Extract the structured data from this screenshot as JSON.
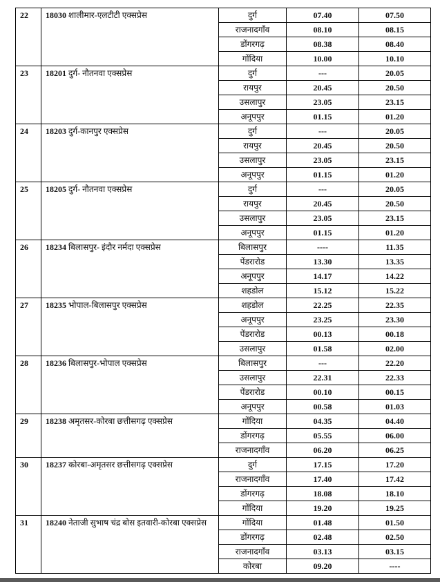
{
  "trains": [
    {
      "sn": "22",
      "number": "18030",
      "name": "शालीमार-एलटीटी एक्सप्रेस",
      "stops": [
        [
          "दुर्ग",
          "07.40",
          "07.50"
        ],
        [
          "राजनादगाँव",
          "08.10",
          "08.15"
        ],
        [
          "डोंगरगढ़",
          "08.38",
          "08.40"
        ],
        [
          "गोंदिया",
          "10.00",
          "10.10"
        ]
      ]
    },
    {
      "sn": "23",
      "number": "18201",
      "name": "दुर्ग- नौतनवा एक्सप्रेस",
      "stops": [
        [
          "दुर्ग",
          "---",
          "20.05"
        ],
        [
          "रायपुर",
          "20.45",
          "20.50"
        ],
        [
          "उसलापुर",
          "23.05",
          "23.15"
        ],
        [
          "अनूपपुर",
          "01.15",
          "01.20"
        ]
      ]
    },
    {
      "sn": "24",
      "number": "18203",
      "name": "दुर्ग-कानपुर एक्सप्रेस",
      "stops": [
        [
          "दुर्ग",
          "---",
          "20.05"
        ],
        [
          "रायपुर",
          "20.45",
          "20.50"
        ],
        [
          "उसलापुर",
          "23.05",
          "23.15"
        ],
        [
          "अनूपपुर",
          "01.15",
          "01.20"
        ]
      ]
    },
    {
      "sn": "25",
      "number": "18205",
      "name": "दुर्ग- नौतनवा एक्सप्रेस",
      "stops": [
        [
          "दुर्ग",
          "---",
          "20.05"
        ],
        [
          "रायपुर",
          "20.45",
          "20.50"
        ],
        [
          "उसलापुर",
          "23.05",
          "23.15"
        ],
        [
          "अनूपपुर",
          "01.15",
          "01.20"
        ]
      ]
    },
    {
      "sn": "26",
      "number": "18234",
      "name": "बिलासपुर- इंदौर नर्मदा एक्सप्रेस",
      "stops": [
        [
          "बिलासपुर",
          "----",
          "11.35"
        ],
        [
          "पेंडरारोड",
          "13.30",
          "13.35"
        ],
        [
          "अनूपपुर",
          "14.17",
          "14.22"
        ],
        [
          "शहडोल",
          "15.12",
          "15.22"
        ]
      ]
    },
    {
      "sn": "27",
      "number": "18235",
      "name": "भोपाल-बिलासपुर एक्सप्रेस",
      "stops": [
        [
          "शहडोल",
          "22.25",
          "22.35"
        ],
        [
          "अनूपपुर",
          "23.25",
          "23.30"
        ],
        [
          "पेंडरारोड",
          "00.13",
          "00.18"
        ],
        [
          "उसलापुर",
          "01.58",
          "02.00"
        ]
      ]
    },
    {
      "sn": "28",
      "number": "18236",
      "name": "बिलासपुर-भोपाल एक्सप्रेस",
      "stops": [
        [
          "बिलासपुर",
          "---",
          "22.20"
        ],
        [
          "उसलापुर",
          "22.31",
          "22.33"
        ],
        [
          "पेंडरारोड",
          "00.10",
          "00.15"
        ],
        [
          "अनूपपुर",
          "00.58",
          "01.03"
        ]
      ]
    },
    {
      "sn": "29",
      "number": "18238",
      "name": "अमृतसर-कोरबा छत्तीसगढ़ एक्सप्रेस",
      "stops": [
        [
          "गोंदिया",
          "04.35",
          "04.40"
        ],
        [
          "डोंगरगढ़",
          "05.55",
          "06.00"
        ],
        [
          "राजनादगाँव",
          "06.20",
          "06.25"
        ]
      ]
    },
    {
      "sn": "30",
      "number": "18237",
      "name": "कोरबा-अमृतसर छत्तीसगढ़ एक्सप्रेस",
      "stops": [
        [
          "दुर्ग",
          "17.15",
          "17.20"
        ],
        [
          "राजनादगाँव",
          "17.40",
          "17.42"
        ],
        [
          "डोंगरगढ़",
          "18.08",
          "18.10"
        ],
        [
          "गोंदिया",
          "19.20",
          "19.25"
        ]
      ]
    },
    {
      "sn": "31",
      "number": "18240",
      "name": "नेताजी सुभाष चंद्र बोस इतवारी-कोरबा एक्सप्रेस",
      "stops": [
        [
          "गोंदिया",
          "01.48",
          "01.50"
        ],
        [
          "डोंगरगढ़",
          "02.48",
          "02.50"
        ],
        [
          "राजनादगाँव",
          "03.13",
          "03.15"
        ],
        [
          "कोरबा",
          "09.20",
          "----"
        ]
      ]
    }
  ]
}
